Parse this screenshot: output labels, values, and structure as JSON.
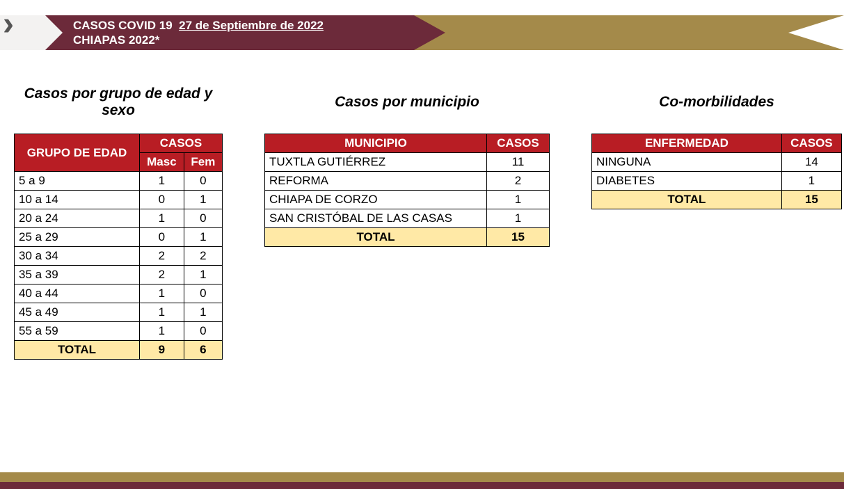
{
  "header": {
    "title_prefix": "CASOS COVID 19",
    "date": "27 de Septiembre de 2022",
    "subtitle": "CHIAPAS 2022*"
  },
  "colors": {
    "maroon": "#6c2a3a",
    "gold": "#a48a4a",
    "red": "#b81d24",
    "total_bg": "#ffe9a6"
  },
  "table_age": {
    "title": "Casos por grupo de edad y sexo",
    "header_group": "GRUPO DE EDAD",
    "header_cases": "CASOS",
    "header_masc": "Masc",
    "header_fem": "Fem",
    "rows": [
      {
        "group": "5 a 9",
        "masc": "1",
        "fem": "0"
      },
      {
        "group": "10 a 14",
        "masc": "0",
        "fem": "1"
      },
      {
        "group": "20 a 24",
        "masc": "1",
        "fem": "0"
      },
      {
        "group": "25 a 29",
        "masc": "0",
        "fem": "1"
      },
      {
        "group": "30 a 34",
        "masc": "2",
        "fem": "2"
      },
      {
        "group": "35 a 39",
        "masc": "2",
        "fem": "1"
      },
      {
        "group": "40 a 44",
        "masc": "1",
        "fem": "0"
      },
      {
        "group": "45 a 49",
        "masc": "1",
        "fem": "1"
      },
      {
        "group": "55 a 59",
        "masc": "1",
        "fem": "0"
      }
    ],
    "total_label": "TOTAL",
    "total_masc": "9",
    "total_fem": "6"
  },
  "table_muni": {
    "title": "Casos por municipio",
    "header_muni": "MUNICIPIO",
    "header_cases": "CASOS",
    "rows": [
      {
        "muni": "TUXTLA GUTIÉRREZ",
        "cases": "11"
      },
      {
        "muni": "REFORMA",
        "cases": "2"
      },
      {
        "muni": "CHIAPA DE CORZO",
        "cases": "1"
      },
      {
        "muni": "SAN CRISTÓBAL DE LAS CASAS",
        "cases": "1"
      }
    ],
    "total_label": "TOTAL",
    "total_cases": "15"
  },
  "table_comorb": {
    "title": "Co-morbilidades",
    "header_disease": "ENFERMEDAD",
    "header_cases": "CASOS",
    "rows": [
      {
        "disease": "NINGUNA",
        "cases": "14"
      },
      {
        "disease": "DIABETES",
        "cases": "1"
      }
    ],
    "total_label": "TOTAL",
    "total_cases": "15"
  }
}
